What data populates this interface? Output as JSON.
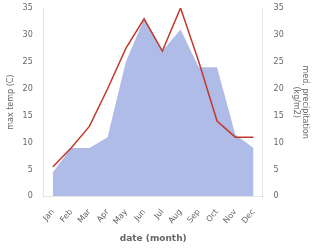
{
  "chart_data": {
    "type": "line",
    "categories": [
      "Jan",
      "Feb",
      "Mar",
      "Apr",
      "May",
      "Jun",
      "Jul",
      "Aug",
      "Sep",
      "Oct",
      "Nov",
      "Dec"
    ],
    "series": [
      {
        "type": "area",
        "color": "#b0bce8",
        "axis": "y2",
        "values": [
          4.5,
          9.0,
          9.0,
          11.0,
          25.0,
          33.0,
          27.0,
          31.0,
          24.0,
          24.0,
          11.5,
          9.0
        ]
      },
      {
        "type": "line",
        "color": "#c0392b",
        "values": [
          5.5,
          9.0,
          13.0,
          20.0,
          27.5,
          33.0,
          27.0,
          35.0,
          25.0,
          14.0,
          11.0,
          11.0
        ]
      }
    ],
    "xlabel": "date (month)",
    "ylabel": "max temp (C)",
    "y2label": "med. precipitation\n(kg/m2)",
    "ylim": [
      0,
      35
    ],
    "yticks": [
      0,
      5,
      10,
      15,
      20,
      25,
      30,
      35
    ],
    "y2lim": [
      0,
      35
    ],
    "y2ticks": [
      0,
      5,
      10,
      15,
      20,
      25,
      30,
      35
    ],
    "grid": false
  }
}
